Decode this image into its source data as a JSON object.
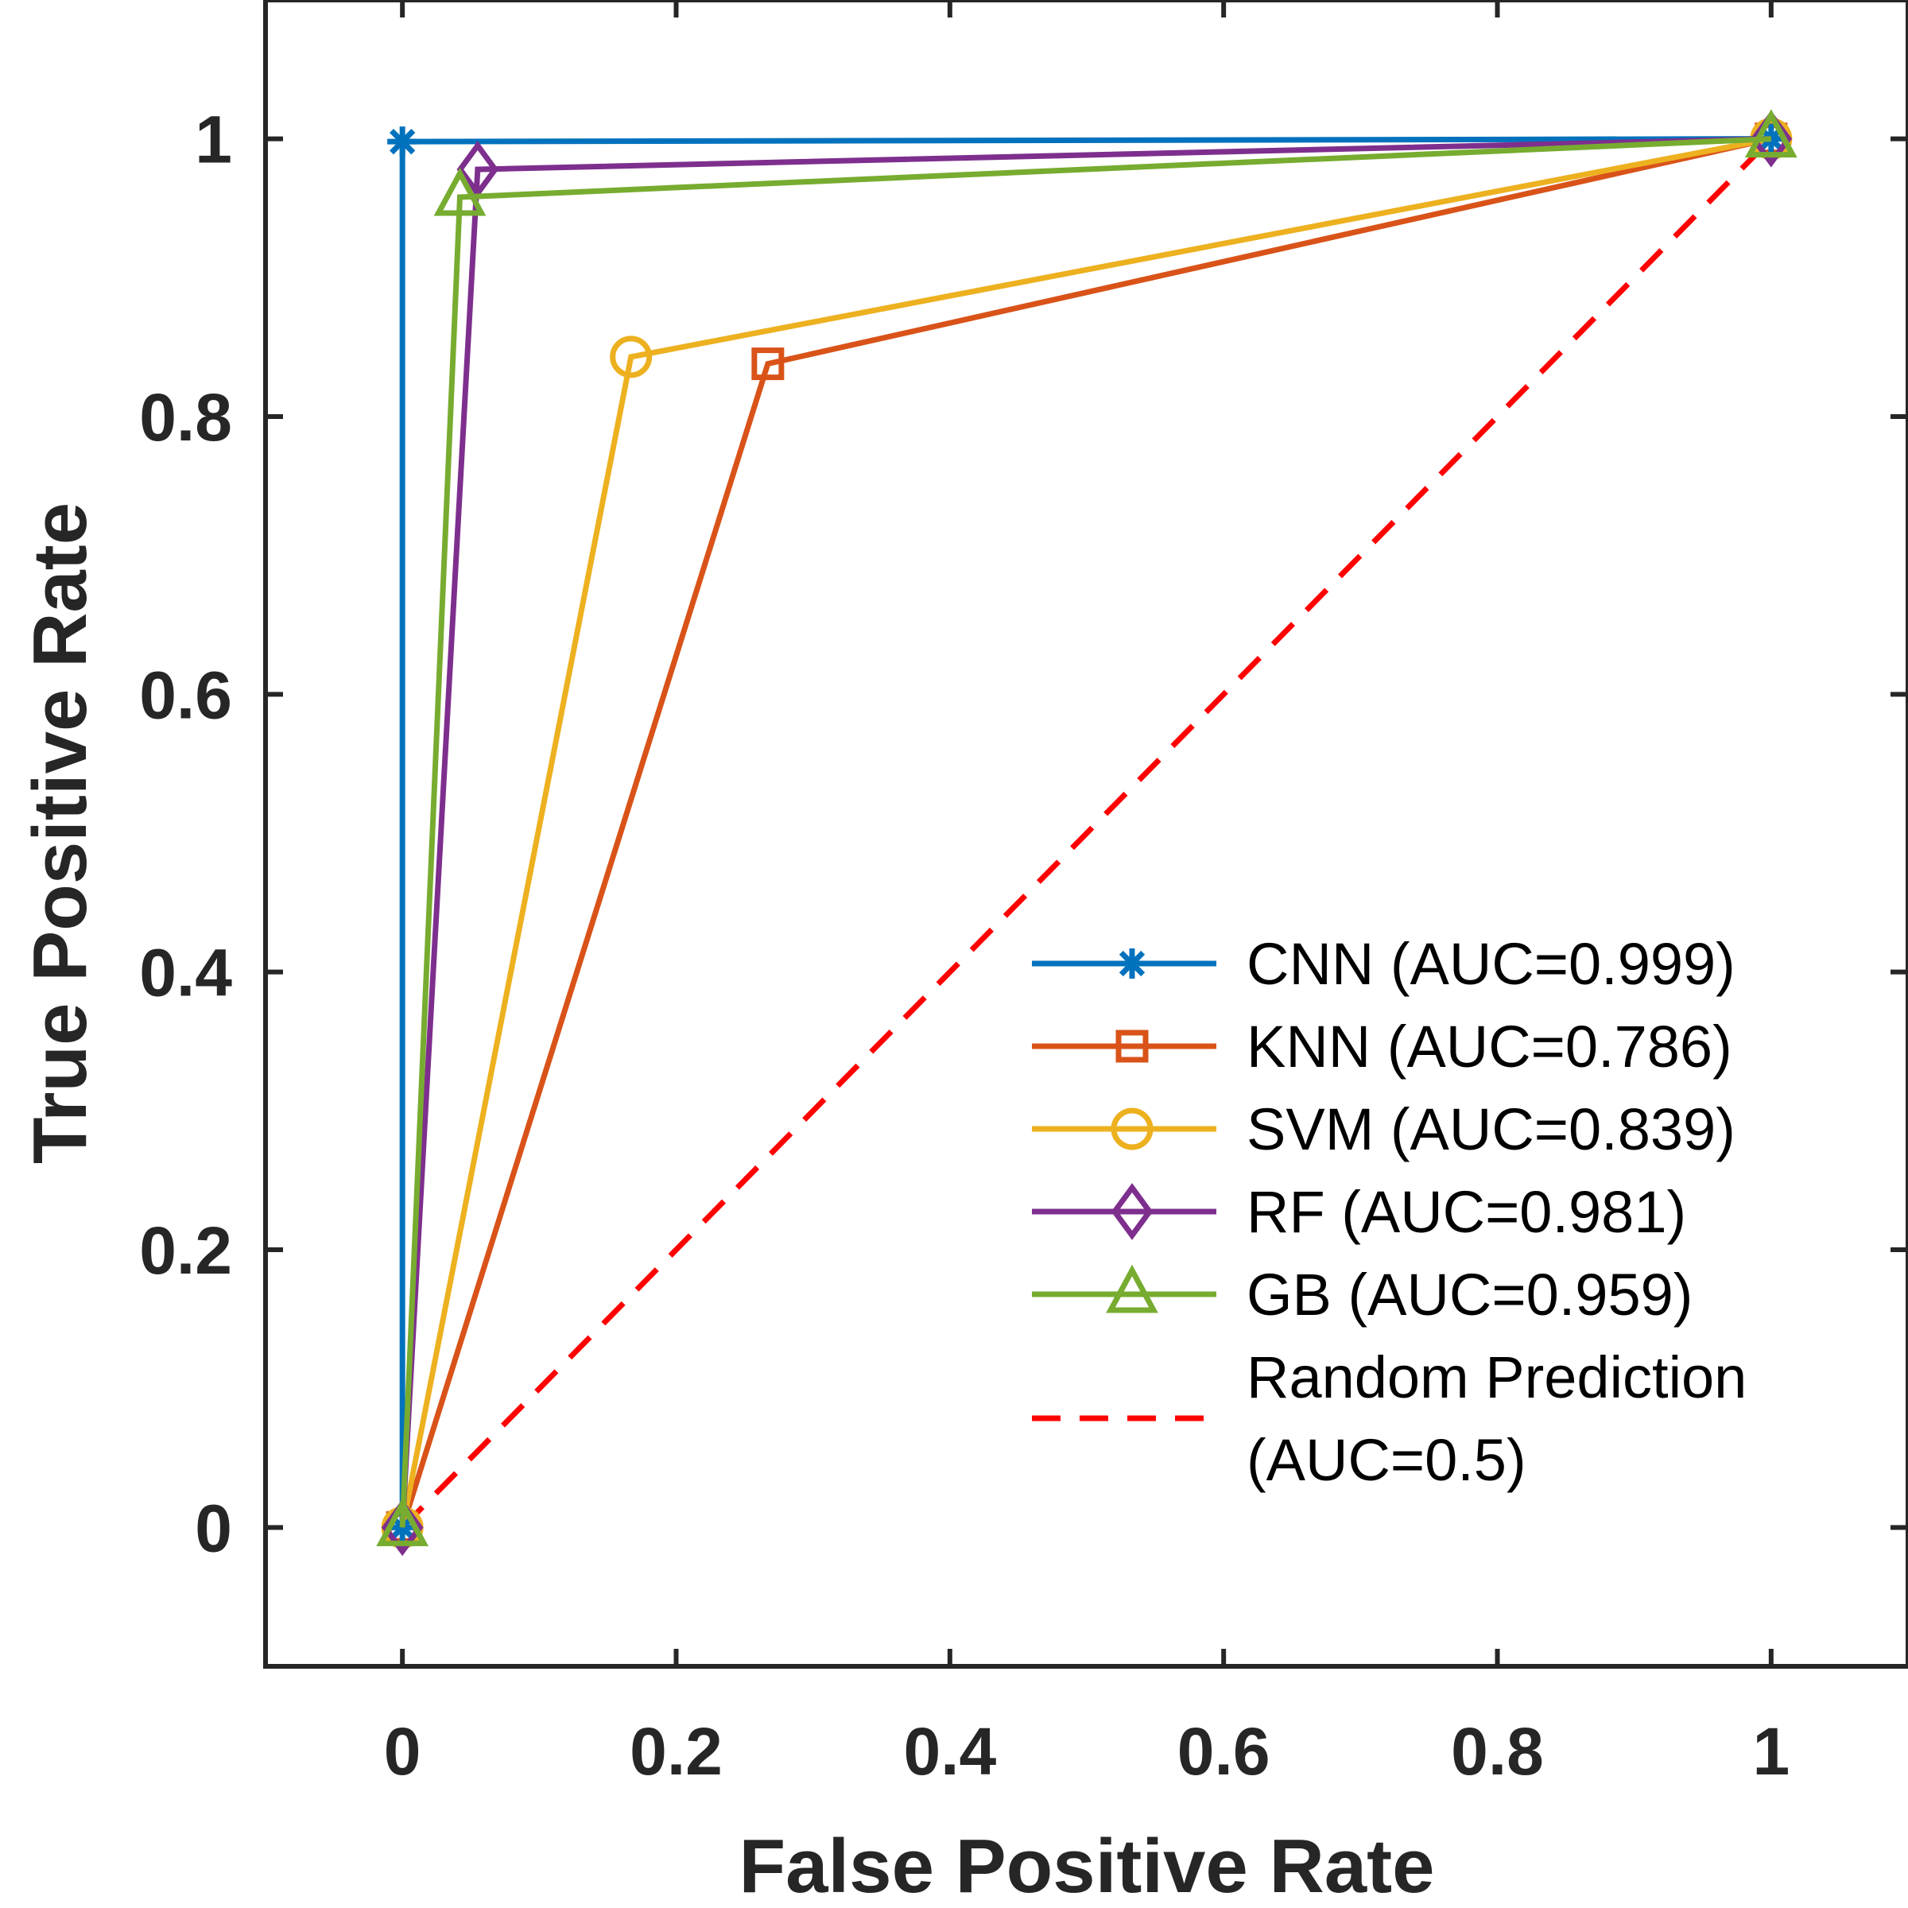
{
  "chart_data": {
    "type": "line",
    "title": "",
    "xlabel": "False Positive Rate",
    "ylabel": "True Positive Rate",
    "xlim": [
      -0.1,
      1.1
    ],
    "ylim": [
      -0.1,
      1.1
    ],
    "xticks": [
      0,
      0.2,
      0.4,
      0.6,
      0.8,
      1
    ],
    "xtick_labels": [
      "0",
      "0.2",
      "0.4",
      "0.6",
      "0.8",
      "1"
    ],
    "yticks": [
      0,
      0.2,
      0.4,
      0.6,
      0.8,
      1
    ],
    "ytick_labels": [
      "0",
      "0.2",
      "0.4",
      "0.6",
      "0.8",
      "1"
    ],
    "grid": false,
    "legend_position": "bottom-right",
    "series": [
      {
        "name": "CNN",
        "legend_label": "CNN (AUC=0.999)",
        "color": "#0072BD",
        "marker": "asterisk",
        "dashed": false,
        "x": [
          0,
          0,
          1
        ],
        "y": [
          0,
          0.998,
          1
        ]
      },
      {
        "name": "KNN",
        "legend_label": "KNN (AUC=0.786)",
        "color": "#D95319",
        "marker": "square",
        "dashed": false,
        "x": [
          0,
          0.267,
          1
        ],
        "y": [
          0,
          0.838,
          1
        ]
      },
      {
        "name": "SVM",
        "legend_label": "SVM (AUC=0.839)",
        "color": "#EDB120",
        "marker": "circle",
        "dashed": false,
        "x": [
          0,
          0.167,
          1
        ],
        "y": [
          0,
          0.843,
          1
        ]
      },
      {
        "name": "RF",
        "legend_label": "RF (AUC=0.981)",
        "color": "#7E2F8E",
        "marker": "diamond",
        "dashed": false,
        "x": [
          0,
          0.055,
          1
        ],
        "y": [
          0,
          0.978,
          1
        ]
      },
      {
        "name": "GB",
        "legend_label": "GB (AUC=0.959)",
        "color": "#77AC30",
        "marker": "triangle",
        "dashed": false,
        "x": [
          0,
          0.042,
          1
        ],
        "y": [
          0,
          0.958,
          1
        ]
      },
      {
        "name": "Random Prediction",
        "legend_label": [
          "Random Prediction",
          "(AUC=0.5)"
        ],
        "color": "#FF0000",
        "marker": "none",
        "dashed": true,
        "x": [
          0,
          1
        ],
        "y": [
          0,
          1
        ]
      }
    ]
  }
}
